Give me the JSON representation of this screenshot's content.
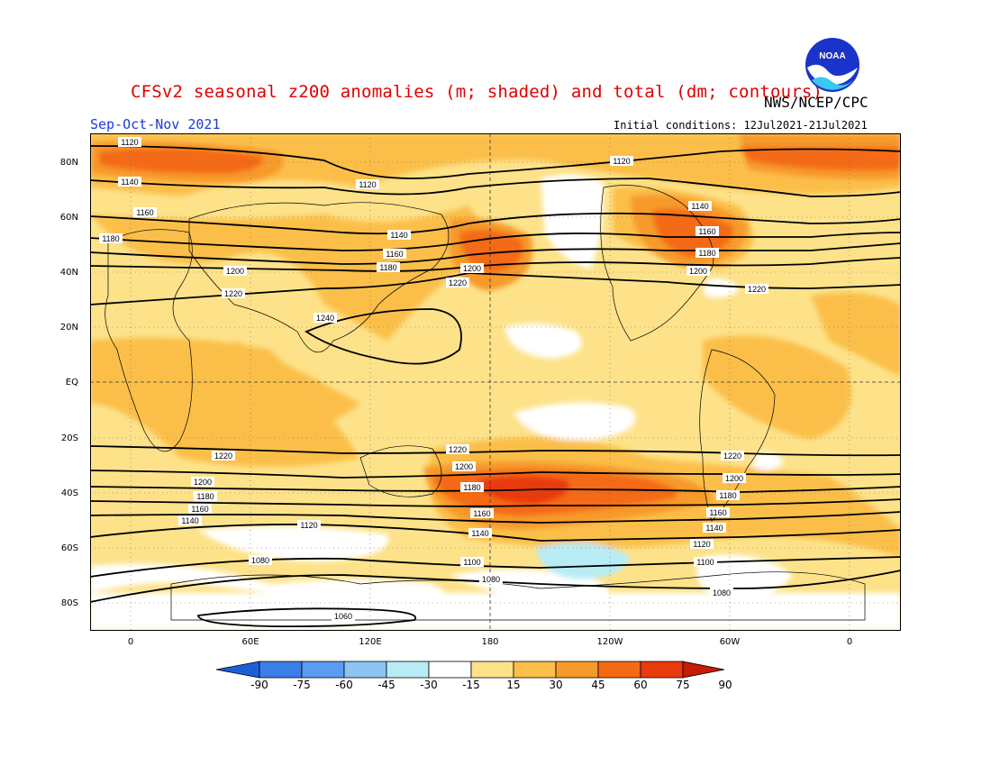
{
  "title": "CFSv2 seasonal z200 anomalies (m; shaded) and total (dm; contours)",
  "org": "NWS/NCEP/CPC",
  "season": "Sep-Oct-Nov 2021",
  "initial_conditions": "Initial conditions: 12Jul2021-21Jul2021",
  "logo_text": "NOAA",
  "lat_labels": [
    "80N",
    "60N",
    "40N",
    "20N",
    "EQ",
    "20S",
    "40S",
    "60S",
    "80S"
  ],
  "lon_labels": [
    "0",
    "60E",
    "120E",
    "180",
    "120W",
    "60W",
    "0"
  ],
  "colorbar": {
    "ticks": [
      "-90",
      "-75",
      "-60",
      "-45",
      "-30",
      "-15",
      "15",
      "30",
      "45",
      "60",
      "75",
      "90"
    ],
    "colors": [
      "#1e5fd8",
      "#3a7ee8",
      "#5a9cf0",
      "#8cc4f4",
      "#b8ecf4",
      "#ffffff",
      "#fde28a",
      "#fbbf4a",
      "#f79a2c",
      "#f46a14",
      "#e83a0a",
      "#c81a06"
    ]
  },
  "contour_labels": {
    "c1060": "1060",
    "c1080": "1080",
    "c1100": "1100",
    "c1120": "1120",
    "c1140": "1140",
    "c1160": "1160",
    "c1180": "1180",
    "c1200": "1200",
    "c1220": "1220",
    "c1240": "1240"
  }
}
